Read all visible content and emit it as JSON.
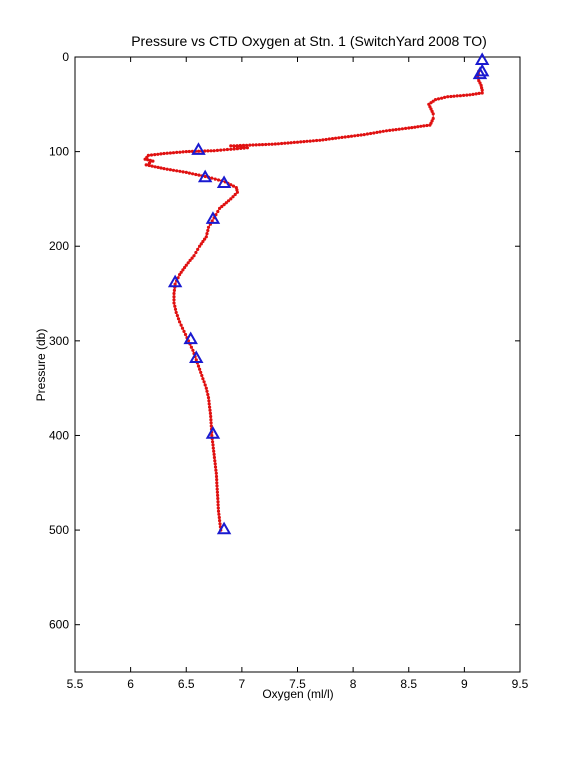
{
  "chart_data": {
    "type": "line",
    "title": "Pressure vs CTD Oxygen at Stn. 1 (SwitchYard 2008 TO)",
    "xlabel": "Oxygen (ml/l)",
    "ylabel": "Pressure (db)",
    "xlim": [
      5.5,
      9.5
    ],
    "ylim": [
      0,
      650
    ],
    "y_reversed": true,
    "grid": false,
    "xticks": [
      5.5,
      6,
      6.5,
      7,
      7.5,
      8,
      8.5,
      9,
      9.5
    ],
    "yticks": [
      0,
      100,
      200,
      300,
      400,
      500,
      600
    ],
    "colors": {
      "profile": "#e01010",
      "bottle": "#1a1ad0"
    },
    "series": [
      {
        "marker": "dot-line",
        "color": "#e01010",
        "x": [
          9.13,
          9.12,
          9.13,
          9.15,
          9.16,
          9.16,
          9.05,
          8.85,
          8.74,
          8.68,
          8.7,
          8.72,
          8.72,
          8.7,
          8.69,
          8.5,
          8.3,
          8.1,
          7.9,
          7.7,
          7.5,
          7.3,
          7.1,
          6.9,
          7.05,
          6.75,
          6.5,
          6.3,
          6.16,
          6.13,
          6.2,
          6.14,
          6.3,
          6.5,
          6.7,
          6.85,
          6.95,
          6.96,
          6.9,
          6.8,
          6.75,
          6.7,
          6.68,
          6.62,
          6.57,
          6.5,
          6.44,
          6.4,
          6.39,
          6.39,
          6.41,
          6.44,
          6.48,
          6.52,
          6.56,
          6.59,
          6.62,
          6.65,
          6.68,
          6.7,
          6.72,
          6.73,
          6.75,
          6.77,
          6.78,
          6.79,
          6.8,
          6.81
        ],
        "y": [
          15,
          20,
          25,
          30,
          35,
          38,
          40,
          42,
          45,
          50,
          55,
          60,
          65,
          70,
          72,
          75,
          78,
          82,
          85,
          88,
          90,
          92,
          93,
          94,
          96,
          99,
          100,
          102,
          104,
          108,
          110,
          114,
          118,
          122,
          127,
          132,
          138,
          143,
          150,
          160,
          170,
          180,
          190,
          200,
          210,
          220,
          230,
          240,
          250,
          260,
          270,
          280,
          290,
          300,
          310,
          320,
          330,
          340,
          350,
          360,
          380,
          400,
          420,
          440,
          460,
          480,
          490,
          500
        ]
      },
      {
        "marker": "triangle",
        "color": "#1a1ad0",
        "x": [
          9.16,
          9.16,
          9.14,
          6.61,
          6.67,
          6.84,
          6.74,
          6.4,
          6.54,
          6.59,
          6.74,
          6.84
        ],
        "y": [
          3,
          15,
          18,
          98,
          127,
          133,
          171,
          238,
          298,
          318,
          398,
          499
        ]
      }
    ]
  }
}
